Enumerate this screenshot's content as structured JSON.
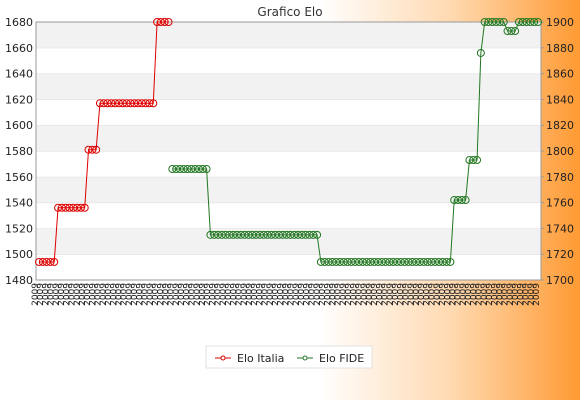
{
  "chart_data": {
    "type": "line",
    "title": "Grafico Elo",
    "left_axis": {
      "ylim": [
        1480,
        1680
      ],
      "ticks": [
        1480,
        1500,
        1520,
        1540,
        1560,
        1580,
        1600,
        1620,
        1640,
        1660,
        1680
      ]
    },
    "right_axis": {
      "ylim": [
        1700,
        1900
      ],
      "ticks": [
        1700,
        1720,
        1740,
        1760,
        1780,
        1800,
        1820,
        1840,
        1860,
        1880,
        1900
      ]
    },
    "x_tick_count": 97,
    "x_label_prefix": "2009",
    "grid": true,
    "legend_position": "bottom",
    "series": [
      {
        "name": "Elo Italia",
        "axis": "left",
        "color": "#dd0000",
        "segments": [
          {
            "from": 0,
            "to": 5,
            "value": 1494
          },
          {
            "from": 5,
            "to": 13,
            "value": 1536
          },
          {
            "from": 13,
            "to": 16,
            "value": 1581
          },
          {
            "from": 16,
            "to": 31,
            "value": 1617
          },
          {
            "from": 31,
            "to": 35,
            "value": 1680
          }
        ]
      },
      {
        "name": "Elo FIDE",
        "axis": "right",
        "color": "#227722",
        "segments": [
          {
            "from": 35,
            "to": 45,
            "value": 1786
          },
          {
            "from": 45,
            "to": 74,
            "value": 1735
          },
          {
            "from": 74,
            "to": 109,
            "value": 1714
          },
          {
            "from": 109,
            "to": 113,
            "value": 1762
          },
          {
            "from": 113,
            "to": 116,
            "value": 1793
          },
          {
            "from": 116,
            "to": 117,
            "value": 1876
          },
          {
            "from": 117,
            "to": 123,
            "value": 1900
          },
          {
            "from": 123,
            "to": 126,
            "value": 1893
          },
          {
            "from": 126,
            "to": 132,
            "value": 1900
          }
        ]
      }
    ]
  }
}
